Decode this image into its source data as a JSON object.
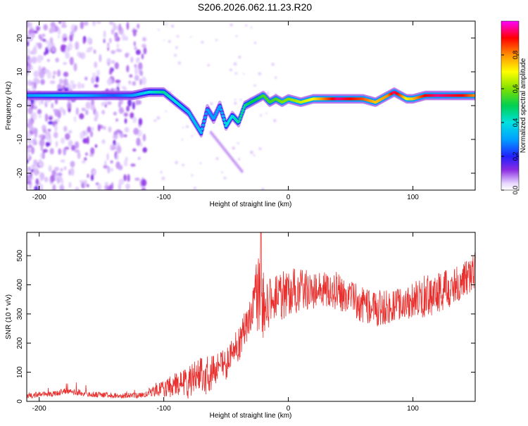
{
  "figure_title": "S206.2026.062.11.23.R20",
  "chart_data": [
    {
      "type": "heatmap",
      "panel": "spectrogram",
      "xlabel": "Height of straight line (km)",
      "ylabel": "Frequency (Hz)",
      "xlim": [
        -210,
        150
      ],
      "ylim": [
        -25,
        25
      ],
      "xticks": [
        -200,
        -100,
        0,
        100
      ],
      "xtick_labels": [
        "-200",
        "-100",
        "0",
        "100"
      ],
      "yticks": [
        -20,
        -10,
        0,
        10,
        20
      ],
      "ytick_labels": [
        "-20",
        "-10",
        "0",
        "10",
        "20"
      ],
      "colorbar": {
        "label": "Normalized spectral amplitude",
        "range": [
          0,
          1
        ],
        "ticks": [
          0.0,
          0.2,
          0.4,
          0.6,
          0.8
        ],
        "tick_labels": [
          "0.0",
          "0.2",
          "0.4",
          "0.6",
          "0.8"
        ]
      },
      "ridge": {
        "height_km": [
          -210,
          -180,
          -160,
          -140,
          -125,
          -112,
          -100,
          -90,
          -80,
          -75,
          -70,
          -65,
          -60,
          -55,
          -50,
          -45,
          -40,
          -35,
          -30,
          -25,
          -20,
          -15,
          -10,
          -5,
          0,
          10,
          20,
          40,
          60,
          70,
          80,
          85,
          90,
          95,
          100,
          110,
          120,
          140,
          150
        ],
        "frequency_hz": [
          3,
          3,
          3,
          3,
          3,
          4,
          4,
          1,
          -2,
          -5,
          -8,
          -1,
          -4,
          0,
          -6,
          -3,
          -5,
          0,
          1,
          2,
          3,
          1,
          2,
          1,
          2,
          1,
          2,
          2,
          2,
          1,
          3,
          4,
          3,
          2,
          2,
          3,
          3,
          3,
          3
        ],
        "amplitude": [
          0.3,
          0.35,
          0.3,
          0.25,
          0.3,
          0.4,
          0.45,
          0.4,
          0.35,
          0.35,
          0.35,
          0.3,
          0.3,
          0.3,
          0.4,
          0.4,
          0.45,
          0.45,
          0.5,
          0.5,
          0.55,
          0.55,
          0.55,
          0.6,
          0.6,
          0.65,
          0.7,
          0.95,
          0.85,
          0.75,
          0.8,
          0.95,
          0.85,
          0.7,
          0.75,
          0.9,
          0.95,
          0.9,
          0.8
        ]
      }
    },
    {
      "type": "line",
      "panel": "snr",
      "xlabel": "Height of straight line (km)",
      "ylabel": "SNR (10 * v/v)",
      "xlim": [
        -210,
        150
      ],
      "ylim": [
        0,
        580
      ],
      "xticks": [
        -200,
        -100,
        0,
        100
      ],
      "xtick_labels": [
        "-200",
        "-100",
        "0",
        "100"
      ],
      "yticks": [
        0,
        100,
        200,
        300,
        400,
        500
      ],
      "ytick_labels": [
        "0",
        "100",
        "200",
        "300",
        "400",
        "500"
      ],
      "color": "#e8312f",
      "series": [
        {
          "name": "SNR",
          "x": [
            -210,
            -190,
            -180,
            -160,
            -140,
            -120,
            -112,
            -105,
            -100,
            -95,
            -90,
            -85,
            -80,
            -75,
            -70,
            -65,
            -60,
            -55,
            -50,
            -45,
            -40,
            -35,
            -30,
            -27,
            -25,
            -22,
            -20,
            -15,
            -10,
            -5,
            0,
            10,
            20,
            30,
            40,
            50,
            60,
            70,
            80,
            90,
            100,
            110,
            120,
            130,
            140,
            150
          ],
          "y": [
            20,
            25,
            35,
            25,
            20,
            20,
            25,
            45,
            40,
            50,
            60,
            70,
            65,
            80,
            95,
            85,
            110,
            120,
            130,
            160,
            200,
            240,
            300,
            380,
            360,
            390,
            330,
            350,
            370,
            360,
            370,
            385,
            380,
            385,
            380,
            355,
            330,
            320,
            325,
            335,
            345,
            360,
            375,
            390,
            410,
            450
          ]
        }
      ],
      "peaks": {
        "x": [
          -112,
          -95,
          -80,
          -65,
          -55,
          -45,
          -38,
          -34,
          -30,
          -27,
          -22,
          -18,
          -15,
          -10,
          0,
          20,
          40,
          60,
          80,
          95,
          105,
          110,
          120,
          140,
          150
        ],
        "y": [
          60,
          110,
          160,
          200,
          185,
          230,
          300,
          320,
          380,
          460,
          590,
          420,
          470,
          440,
          460,
          430,
          430,
          385,
          370,
          380,
          420,
          430,
          440,
          445,
          490
        ]
      }
    }
  ]
}
